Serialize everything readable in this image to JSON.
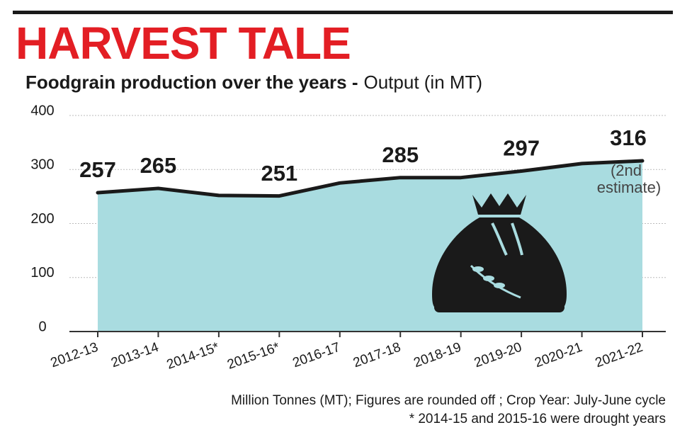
{
  "chart_data": {
    "type": "area",
    "title": "HARVEST TALE",
    "subtitle": "Foodgrain production over the years -",
    "ylabel": "Output (in MT)",
    "categories": [
      "2012-13",
      "2013-14",
      "2014-15*",
      "2015-16*",
      "2016-17",
      "2017-18",
      "2018-19",
      "2019-20",
      "2020-21",
      "2021-22"
    ],
    "values": [
      257,
      265,
      252,
      251,
      275,
      285,
      285,
      297,
      311,
      316
    ],
    "value_labels": [
      "257",
      "265",
      null,
      "251",
      null,
      "285",
      null,
      "297",
      null,
      "316"
    ],
    "annotation": [
      "(2nd",
      "estimate)"
    ],
    "notes": [
      "Million Tonnes (MT); Figures are rounded off ; Crop Year: July-June cycle",
      "* 2014-15 and 2015-16 were drought years"
    ],
    "color": "#a9dce0",
    "line_color": "#1a1a1a",
    "title_color": "#e31e24",
    "ylim": [
      0,
      400
    ],
    "yticks": [
      0,
      100,
      200,
      300,
      400
    ],
    "grid": true
  }
}
